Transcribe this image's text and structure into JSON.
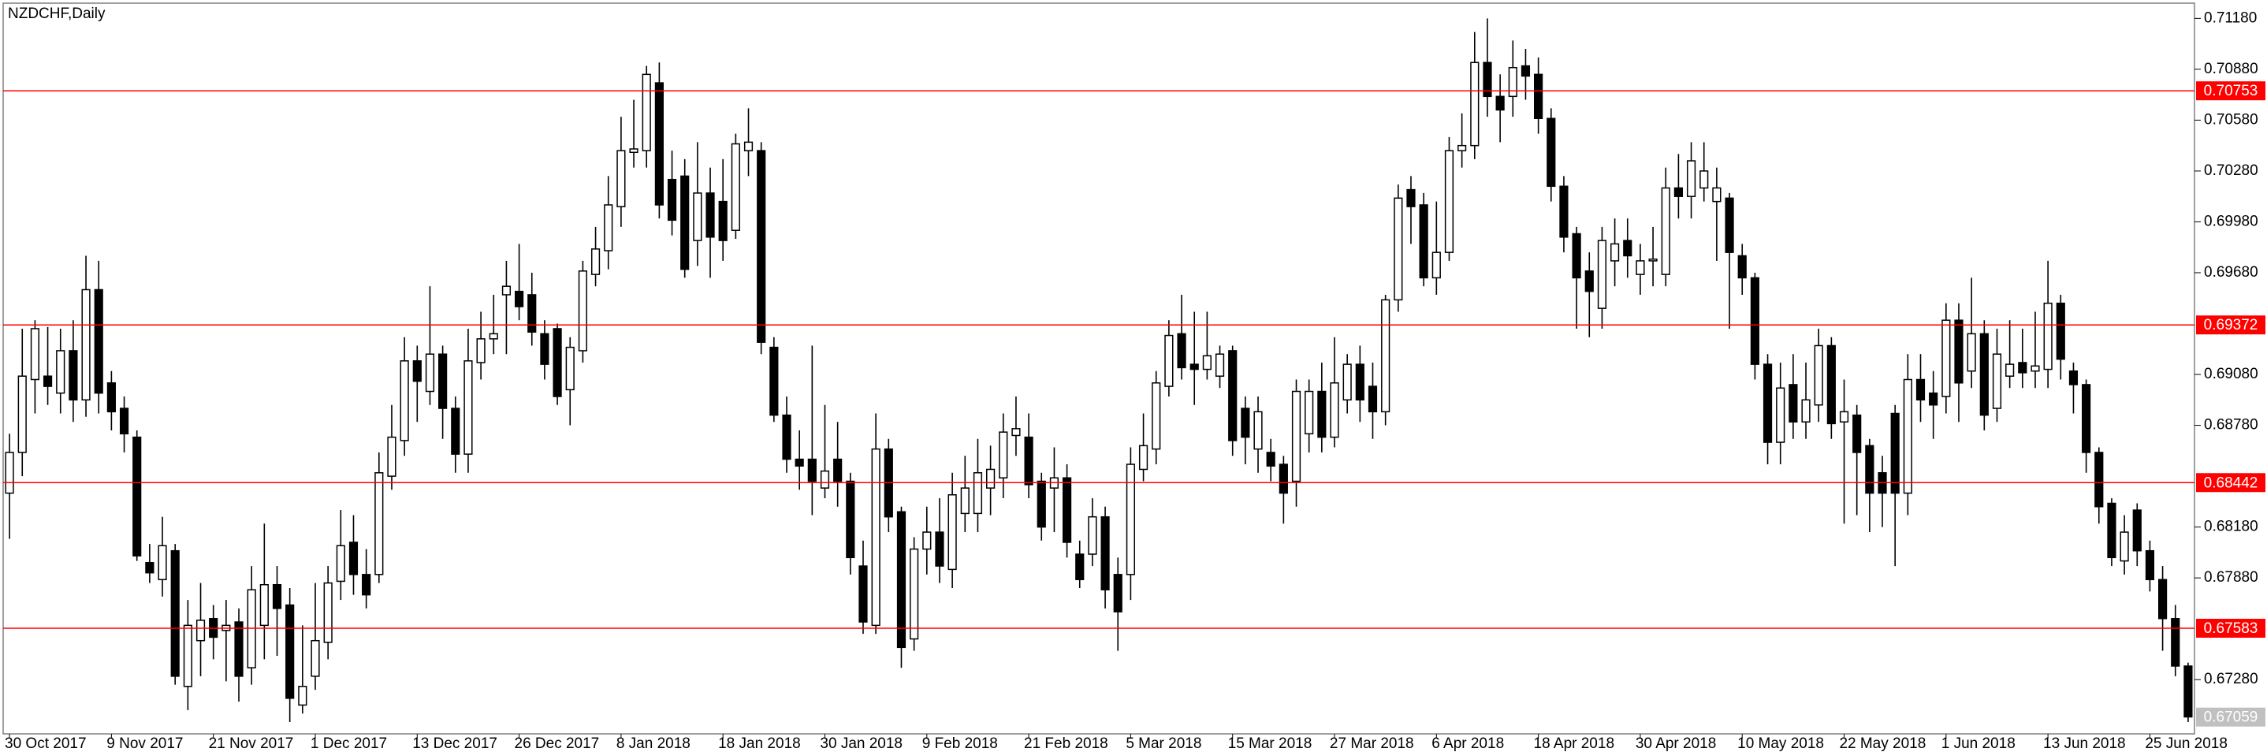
{
  "chart_data": {
    "type": "candlestick",
    "title": "NZDCHF,Daily",
    "categories": [
      "30 Oct 2017",
      null,
      null,
      null,
      null,
      null,
      null,
      null,
      "9 Nov 2017",
      null,
      null,
      null,
      null,
      null,
      null,
      null,
      "21 Nov 2017",
      null,
      null,
      null,
      null,
      null,
      null,
      null,
      "1 Dec 2017",
      null,
      null,
      null,
      null,
      null,
      null,
      null,
      "13 Dec 2017",
      null,
      null,
      null,
      null,
      null,
      null,
      null,
      "26 Dec 2017",
      null,
      null,
      null,
      null,
      null,
      null,
      null,
      "8 Jan 2018",
      null,
      null,
      null,
      null,
      null,
      null,
      null,
      "18 Jan 2018",
      null,
      null,
      null,
      null,
      null,
      null,
      null,
      "30 Jan 2018",
      null,
      null,
      null,
      null,
      null,
      null,
      null,
      "9 Feb 2018",
      null,
      null,
      null,
      null,
      null,
      null,
      null,
      "21 Feb 2018",
      null,
      null,
      null,
      null,
      null,
      null,
      null,
      "5 Mar 2018",
      null,
      null,
      null,
      null,
      null,
      null,
      null,
      "15 Mar 2018",
      null,
      null,
      null,
      null,
      null,
      null,
      null,
      "27 Mar 2018",
      null,
      null,
      null,
      null,
      null,
      null,
      null,
      "6 Apr 2018",
      null,
      null,
      null,
      null,
      null,
      null,
      null,
      "18 Apr 2018",
      null,
      null,
      null,
      null,
      null,
      null,
      null,
      "30 Apr 2018",
      null,
      null,
      null,
      null,
      null,
      null,
      null,
      "10 May 2018",
      null,
      null,
      null,
      null,
      null,
      null,
      null,
      "22 May 2018",
      null,
      null,
      null,
      null,
      null,
      null,
      null,
      "1 Jun 2018",
      null,
      null,
      null,
      null,
      null,
      null,
      null,
      "13 Jun 2018",
      null,
      null,
      null,
      null,
      null,
      null,
      null,
      "25 Jun 2018",
      null,
      null,
      null
    ],
    "open": [
      0.6838,
      0.6862,
      0.6905,
      0.6907,
      0.6897,
      0.6922,
      0.6893,
      0.6958,
      0.6903,
      0.6888,
      0.6871,
      0.6797,
      0.6787,
      0.6804,
      0.6724,
      0.6751,
      0.6764,
      0.6757,
      0.6762,
      0.6735,
      0.676,
      0.6784,
      0.6772,
      0.6713,
      0.673,
      0.675,
      0.6786,
      0.6809,
      0.679,
      0.679,
      0.6848,
      0.6869,
      0.6916,
      0.6898,
      0.692,
      0.6888,
      0.6861,
      0.6915,
      0.6929,
      0.6955,
      0.6957,
      0.6955,
      0.6932,
      0.6935,
      0.6899,
      0.6922,
      0.6967,
      0.6981,
      0.7007,
      0.7039,
      0.704,
      0.708,
      0.7023,
      0.7025,
      0.6987,
      0.7015,
      0.701,
      0.6993,
      0.704,
      0.704,
      0.6924,
      0.6884,
      0.6858,
      0.6858,
      0.6841,
      0.6858,
      0.6845,
      0.6795,
      0.676,
      0.6864,
      0.6827,
      0.6752,
      0.6805,
      0.6815,
      0.6793,
      0.6826,
      0.6826,
      0.6841,
      0.6847,
      0.6872,
      0.6871,
      0.6845,
      0.6841,
      0.6847,
      0.6802,
      0.6802,
      0.6824,
      0.679,
      0.679,
      0.6852,
      0.6864,
      0.6901,
      0.6932,
      0.6914,
      0.6911,
      0.6907,
      0.6922,
      0.6888,
      0.6864,
      0.6862,
      0.6855,
      0.6845,
      0.6873,
      0.6898,
      0.6871,
      0.6893,
      0.6914,
      0.6901,
      0.6886,
      0.6952,
      0.7017,
      0.7008,
      0.6965,
      0.698,
      0.704,
      0.7043,
      0.7092,
      0.7072,
      0.7072,
      0.709,
      0.7085,
      0.7059,
      0.7019,
      0.6991,
      0.6969,
      0.6947,
      0.6975,
      0.6987,
      0.6967,
      0.6975,
      0.6967,
      0.7018,
      0.7013,
      0.7018,
      0.701,
      0.7012,
      0.6978,
      0.6965,
      0.6914,
      0.6868,
      0.6902,
      0.688,
      0.689,
      0.6925,
      0.688,
      0.6884,
      0.6866,
      0.685,
      0.6885,
      0.6838,
      0.6905,
      0.6897,
      0.6895,
      0.694,
      0.691,
      0.6932,
      0.6888,
      0.6907,
      0.6915,
      0.691,
      0.6911,
      0.695,
      0.691,
      0.6902,
      0.6862,
      0.6832,
      0.6798,
      0.6828,
      0.6804,
      0.6787,
      0.6764,
      0.6736
    ],
    "high": [
      0.6873,
      0.6935,
      0.694,
      0.6936,
      0.6935,
      0.694,
      0.6978,
      0.6975,
      0.691,
      0.6895,
      0.6875,
      0.6808,
      0.6824,
      0.6808,
      0.6775,
      0.6785,
      0.6772,
      0.6775,
      0.677,
      0.6795,
      0.682,
      0.6795,
      0.6782,
      0.676,
      0.6785,
      0.6795,
      0.6828,
      0.6825,
      0.6805,
      0.6862,
      0.689,
      0.693,
      0.6925,
      0.696,
      0.6925,
      0.6895,
      0.6935,
      0.6945,
      0.6955,
      0.6975,
      0.6985,
      0.6968,
      0.694,
      0.6938,
      0.693,
      0.6975,
      0.6995,
      0.7025,
      0.706,
      0.707,
      0.709,
      0.7092,
      0.704,
      0.7035,
      0.7045,
      0.703,
      0.7035,
      0.705,
      0.7065,
      0.7045,
      0.693,
      0.6895,
      0.6875,
      0.6925,
      0.689,
      0.688,
      0.685,
      0.681,
      0.6885,
      0.687,
      0.683,
      0.6812,
      0.683,
      0.6835,
      0.685,
      0.686,
      0.687,
      0.6866,
      0.6885,
      0.6895,
      0.6885,
      0.685,
      0.6865,
      0.6855,
      0.681,
      0.6835,
      0.683,
      0.68,
      0.6865,
      0.6885,
      0.691,
      0.694,
      0.6955,
      0.6945,
      0.6945,
      0.6925,
      0.6925,
      0.6895,
      0.6895,
      0.687,
      0.686,
      0.6905,
      0.6905,
      0.6915,
      0.693,
      0.692,
      0.6925,
      0.6915,
      0.6955,
      0.702,
      0.7025,
      0.7015,
      0.701,
      0.7048,
      0.7062,
      0.711,
      0.7118,
      0.7085,
      0.7105,
      0.71,
      0.7095,
      0.7065,
      0.7025,
      0.6995,
      0.698,
      0.6995,
      0.7,
      0.7,
      0.6985,
      0.6995,
      0.703,
      0.7038,
      0.7045,
      0.7045,
      0.703,
      0.7015,
      0.6985,
      0.6968,
      0.692,
      0.6915,
      0.692,
      0.6915,
      0.6935,
      0.693,
      0.6905,
      0.689,
      0.687,
      0.686,
      0.689,
      0.692,
      0.692,
      0.691,
      0.695,
      0.695,
      0.6965,
      0.694,
      0.6935,
      0.694,
      0.6935,
      0.6945,
      0.6975,
      0.6955,
      0.6915,
      0.6905,
      0.6865,
      0.6835,
      0.6825,
      0.6832,
      0.681,
      0.6795,
      0.6772,
      0.6738
    ],
    "low": [
      0.6811,
      0.6848,
      0.6885,
      0.689,
      0.6885,
      0.688,
      0.6883,
      0.6885,
      0.6875,
      0.6862,
      0.6798,
      0.6785,
      0.6777,
      0.6725,
      0.671,
      0.673,
      0.674,
      0.6727,
      0.6715,
      0.6725,
      0.674,
      0.6742,
      0.6703,
      0.6708,
      0.6722,
      0.674,
      0.6775,
      0.6778,
      0.677,
      0.6785,
      0.684,
      0.686,
      0.688,
      0.689,
      0.687,
      0.685,
      0.685,
      0.6905,
      0.692,
      0.692,
      0.694,
      0.6925,
      0.6905,
      0.689,
      0.6878,
      0.6915,
      0.696,
      0.697,
      0.6995,
      0.703,
      0.703,
      0.7,
      0.699,
      0.6965,
      0.6972,
      0.6965,
      0.6975,
      0.6988,
      0.7025,
      0.692,
      0.688,
      0.685,
      0.684,
      0.6825,
      0.6835,
      0.683,
      0.679,
      0.6755,
      0.6755,
      0.6815,
      0.6735,
      0.6745,
      0.679,
      0.6785,
      0.6782,
      0.6815,
      0.6815,
      0.6825,
      0.6835,
      0.686,
      0.6835,
      0.681,
      0.6815,
      0.68,
      0.6782,
      0.6795,
      0.677,
      0.6745,
      0.6775,
      0.6845,
      0.6855,
      0.6895,
      0.6905,
      0.689,
      0.6905,
      0.69,
      0.686,
      0.6855,
      0.685,
      0.6845,
      0.682,
      0.683,
      0.6862,
      0.6862,
      0.6865,
      0.6885,
      0.688,
      0.687,
      0.6878,
      0.6945,
      0.6985,
      0.696,
      0.6955,
      0.6975,
      0.703,
      0.7035,
      0.706,
      0.7045,
      0.706,
      0.707,
      0.705,
      0.701,
      0.698,
      0.6935,
      0.693,
      0.6935,
      0.696,
      0.6965,
      0.6955,
      0.696,
      0.696,
      0.7,
      0.7,
      0.701,
      0.6975,
      0.6935,
      0.6955,
      0.6905,
      0.6855,
      0.6855,
      0.687,
      0.687,
      0.688,
      0.687,
      0.682,
      0.6825,
      0.6815,
      0.6818,
      0.6795,
      0.6825,
      0.688,
      0.687,
      0.6885,
      0.688,
      0.69,
      0.6875,
      0.688,
      0.69,
      0.69,
      0.69,
      0.69,
      0.6905,
      0.6885,
      0.685,
      0.682,
      0.6795,
      0.679,
      0.6795,
      0.678,
      0.6745,
      0.673,
      0.6703
    ],
    "close": [
      0.6862,
      0.6907,
      0.6935,
      0.6901,
      0.6922,
      0.6893,
      0.6958,
      0.6897,
      0.6886,
      0.6873,
      0.6801,
      0.6791,
      0.6807,
      0.673,
      0.676,
      0.6763,
      0.6753,
      0.676,
      0.673,
      0.6781,
      0.6784,
      0.677,
      0.6717,
      0.6724,
      0.6751,
      0.6785,
      0.6807,
      0.679,
      0.6778,
      0.685,
      0.6871,
      0.6916,
      0.6904,
      0.692,
      0.6888,
      0.6861,
      0.6916,
      0.6929,
      0.6932,
      0.696,
      0.6948,
      0.6933,
      0.6914,
      0.6895,
      0.6924,
      0.6969,
      0.6982,
      0.7008,
      0.704,
      0.7041,
      0.7085,
      0.7008,
      0.6999,
      0.697,
      0.7015,
      0.6989,
      0.6987,
      0.7044,
      0.7045,
      0.6927,
      0.6884,
      0.6858,
      0.6854,
      0.6845,
      0.6851,
      0.6845,
      0.68,
      0.6762,
      0.6864,
      0.6824,
      0.6747,
      0.6805,
      0.6815,
      0.6795,
      0.6837,
      0.6841,
      0.685,
      0.6852,
      0.6874,
      0.6876,
      0.6843,
      0.6818,
      0.6847,
      0.6809,
      0.6787,
      0.6824,
      0.6781,
      0.6768,
      0.6855,
      0.6866,
      0.6903,
      0.6931,
      0.6912,
      0.6911,
      0.6919,
      0.692,
      0.6869,
      0.6871,
      0.6886,
      0.6854,
      0.6838,
      0.6898,
      0.6898,
      0.6871,
      0.6903,
      0.6914,
      0.6893,
      0.6886,
      0.6952,
      0.7012,
      0.7007,
      0.6965,
      0.698,
      0.704,
      0.7043,
      0.7092,
      0.7072,
      0.7064,
      0.7089,
      0.7084,
      0.7059,
      0.7019,
      0.6989,
      0.6965,
      0.6957,
      0.6987,
      0.6985,
      0.6978,
      0.6975,
      0.6976,
      0.7018,
      0.7013,
      0.7034,
      0.7028,
      0.7018,
      0.698,
      0.6965,
      0.6914,
      0.6868,
      0.69,
      0.688,
      0.6893,
      0.6925,
      0.6879,
      0.6886,
      0.6862,
      0.6838,
      0.6838,
      0.6838,
      0.6905,
      0.6893,
      0.689,
      0.694,
      0.6903,
      0.6932,
      0.6884,
      0.692,
      0.6914,
      0.6909,
      0.6913,
      0.695,
      0.6917,
      0.6902,
      0.6862,
      0.683,
      0.68,
      0.6815,
      0.6804,
      0.6787,
      0.6764,
      0.6736,
      0.6706
    ],
    "bull_color": "#ffffff",
    "bear_color": "#000000",
    "wick_color": "#000000",
    "levels": [
      0.70753,
      0.69372,
      0.68442,
      0.67583
    ],
    "level_color": "#ff0000",
    "last_price": 0.67059,
    "last_price_color": "#c0c0c0",
    "ylim": [
      0.6696,
      0.7127
    ],
    "yticks": [
      {
        "value": 0.7118,
        "label": "0.71180"
      },
      {
        "value": 0.7088,
        "label": "0.70880"
      },
      {
        "value": 0.7058,
        "label": "0.70580"
      },
      {
        "value": 0.7028,
        "label": "0.70280"
      },
      {
        "value": 0.6998,
        "label": "0.69980"
      },
      {
        "value": 0.6968,
        "label": "0.69680"
      },
      {
        "value": 0.6908,
        "label": "0.69080"
      },
      {
        "value": 0.6878,
        "label": "0.68780"
      },
      {
        "value": 0.6818,
        "label": "0.68180"
      },
      {
        "value": 0.6788,
        "label": "0.67880"
      },
      {
        "value": 0.6728,
        "label": "0.67280"
      }
    ],
    "grid": false
  }
}
